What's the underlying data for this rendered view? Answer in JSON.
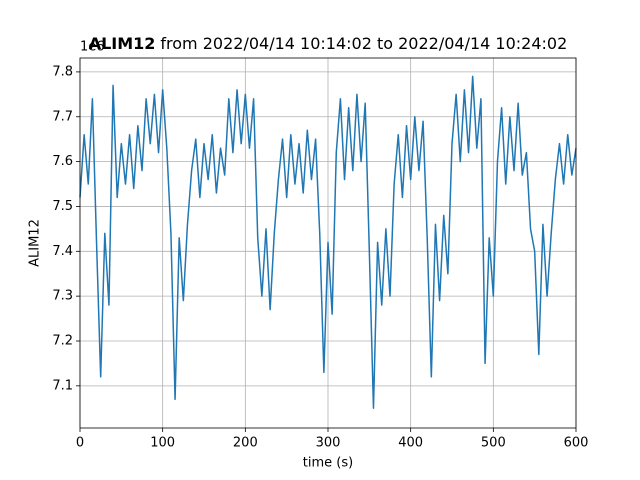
{
  "chart_data": {
    "type": "line",
    "variable": "ALIM12",
    "title": "from 2022/04/14 10:14:02 to 2022/04/14 10:24:02",
    "xlabel": "time (s)",
    "ylabel": "ALIM12",
    "y_offset_label": "1e6",
    "xlim": [
      0,
      600
    ],
    "xticks": [
      0,
      100,
      200,
      300,
      400,
      500,
      600
    ],
    "ylim": [
      7.006,
      7.831
    ],
    "yticks": [
      7.1,
      7.2,
      7.3,
      7.4,
      7.5,
      7.6,
      7.7,
      7.8
    ],
    "grid": true,
    "x": [
      0,
      5,
      10,
      15,
      20,
      25,
      30,
      35,
      40,
      45,
      50,
      55,
      60,
      65,
      70,
      75,
      80,
      85,
      90,
      95,
      100,
      105,
      110,
      115,
      120,
      125,
      130,
      135,
      140,
      145,
      150,
      155,
      160,
      165,
      170,
      175,
      180,
      185,
      190,
      195,
      200,
      205,
      210,
      215,
      220,
      225,
      230,
      235,
      240,
      245,
      250,
      255,
      260,
      265,
      270,
      275,
      280,
      285,
      290,
      295,
      300,
      305,
      310,
      315,
      320,
      325,
      330,
      335,
      340,
      345,
      350,
      355,
      360,
      365,
      370,
      375,
      380,
      385,
      390,
      395,
      400,
      405,
      410,
      415,
      420,
      425,
      430,
      435,
      440,
      445,
      450,
      455,
      460,
      465,
      470,
      475,
      480,
      485,
      490,
      495,
      500,
      505,
      510,
      515,
      520,
      525,
      530,
      535,
      540,
      545,
      550,
      555,
      560,
      565,
      570,
      575,
      580,
      585,
      590,
      595,
      600
    ],
    "series": [
      {
        "color": "#1f77b4",
        "values": [
          7.52,
          7.66,
          7.55,
          7.74,
          7.42,
          7.12,
          7.44,
          7.28,
          7.77,
          7.52,
          7.64,
          7.55,
          7.66,
          7.54,
          7.68,
          7.58,
          7.74,
          7.64,
          7.75,
          7.62,
          7.76,
          7.63,
          7.44,
          7.07,
          7.43,
          7.29,
          7.46,
          7.58,
          7.65,
          7.52,
          7.64,
          7.56,
          7.66,
          7.53,
          7.63,
          7.57,
          7.74,
          7.62,
          7.76,
          7.64,
          7.75,
          7.63,
          7.74,
          7.43,
          7.3,
          7.45,
          7.27,
          7.44,
          7.56,
          7.65,
          7.52,
          7.66,
          7.55,
          7.64,
          7.53,
          7.67,
          7.56,
          7.65,
          7.44,
          7.13,
          7.42,
          7.26,
          7.62,
          7.74,
          7.56,
          7.72,
          7.58,
          7.75,
          7.6,
          7.73,
          7.4,
          7.05,
          7.42,
          7.28,
          7.45,
          7.3,
          7.55,
          7.66,
          7.52,
          7.68,
          7.56,
          7.7,
          7.58,
          7.69,
          7.43,
          7.12,
          7.46,
          7.29,
          7.48,
          7.35,
          7.64,
          7.75,
          7.6,
          7.76,
          7.62,
          7.79,
          7.63,
          7.74,
          7.15,
          7.43,
          7.3,
          7.6,
          7.72,
          7.55,
          7.7,
          7.58,
          7.73,
          7.57,
          7.62,
          7.45,
          7.4,
          7.17,
          7.46,
          7.3,
          7.44,
          7.56,
          7.64,
          7.55,
          7.66,
          7.57,
          7.63
        ]
      }
    ]
  }
}
